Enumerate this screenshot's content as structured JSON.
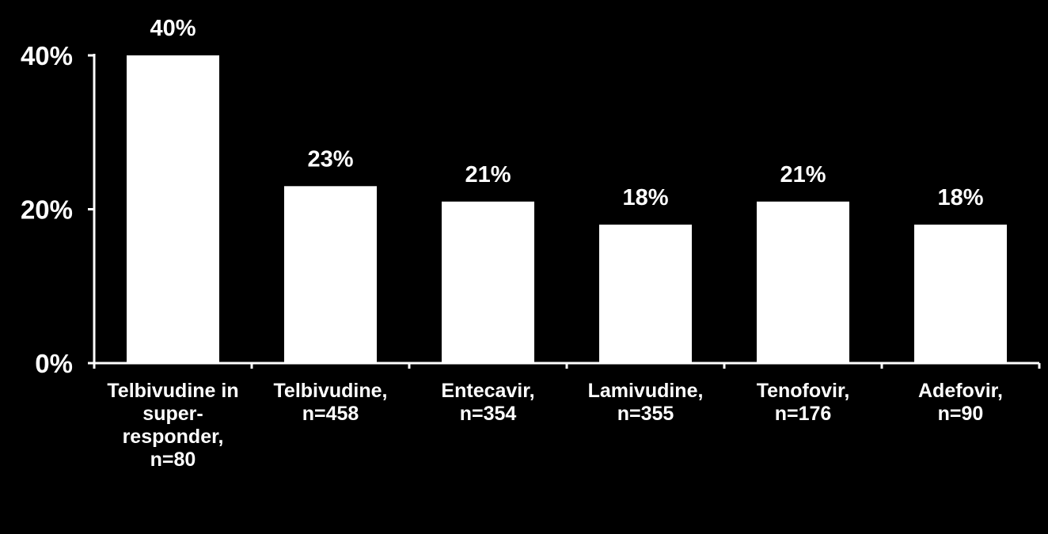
{
  "chart_data": {
    "type": "bar",
    "categories": [
      "Telbivudine in\nsuper-\nresponder,\nn=80",
      "Telbivudine,\nn=458",
      "Entecavir,\nn=354",
      "Lamivudine,\nn=355",
      "Tenofovir,\nn=176",
      "Adefovir,\nn=90"
    ],
    "values": [
      40,
      23,
      21,
      18,
      21,
      18
    ],
    "data_labels": [
      "40%",
      "23%",
      "21%",
      "18%",
      "21%",
      "18%"
    ],
    "y_ticks": [
      {
        "value": 0,
        "label": "0%"
      },
      {
        "value": 20,
        "label": "20%"
      },
      {
        "value": 40,
        "label": "40%"
      }
    ],
    "ylim": [
      0,
      40
    ],
    "grid": false,
    "legend": "none",
    "colors": {
      "background": "#000000",
      "bar": "#ffffff",
      "axis": "#ffffff",
      "text": "#ffffff"
    }
  }
}
